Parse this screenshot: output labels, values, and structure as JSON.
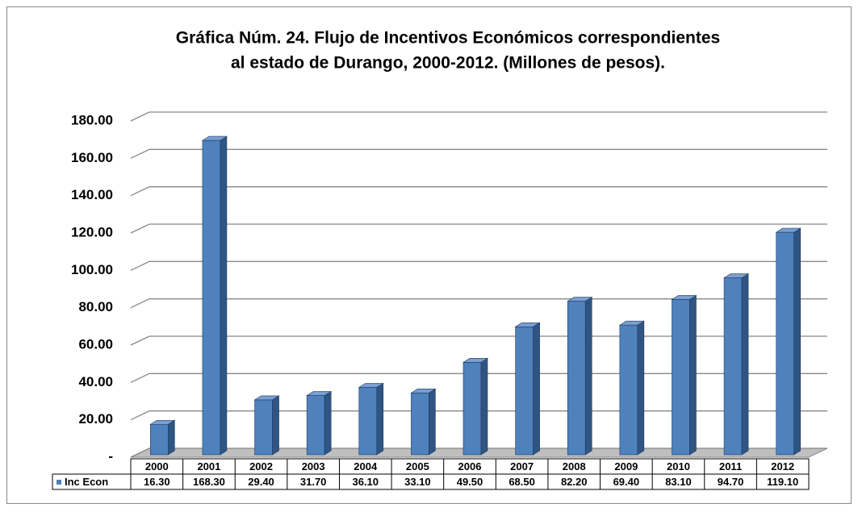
{
  "chart_data": {
    "type": "bar3d",
    "title": [
      "Gráfica Núm. 24. Flujo de Incentivos Económicos correspondientes",
      "al estado de Durango, 2000-2012. (Millones de pesos)."
    ],
    "categories": [
      "2000",
      "2001",
      "2002",
      "2003",
      "2004",
      "2005",
      "2006",
      "2007",
      "2008",
      "2009",
      "2010",
      "2011",
      "2012"
    ],
    "series": [
      {
        "name": "Inc Econ",
        "color": "#4f81bd",
        "values": [
          16.3,
          168.3,
          29.4,
          31.7,
          36.1,
          33.1,
          49.5,
          68.5,
          82.2,
          69.4,
          83.1,
          94.7,
          119.1
        ],
        "value_labels": [
          "16.30",
          "168.30",
          "29.40",
          "31.70",
          "36.10",
          "33.10",
          "49.50",
          "68.50",
          "82.20",
          "69.40",
          "83.10",
          "94.70",
          "119.10"
        ]
      }
    ],
    "ylim": [
      0,
      180
    ],
    "yticks": [
      {
        "value": 0,
        "label": "-"
      },
      {
        "value": 20,
        "label": "20.00"
      },
      {
        "value": 40,
        "label": "40.00"
      },
      {
        "value": 60,
        "label": "60.00"
      },
      {
        "value": 80,
        "label": "80.00"
      },
      {
        "value": 100,
        "label": "100.00"
      },
      {
        "value": 120,
        "label": "120.00"
      },
      {
        "value": 140,
        "label": "140.00"
      },
      {
        "value": 160,
        "label": "160.00"
      },
      {
        "value": 180,
        "label": "180.00"
      }
    ],
    "grid": true,
    "legend": "table"
  }
}
